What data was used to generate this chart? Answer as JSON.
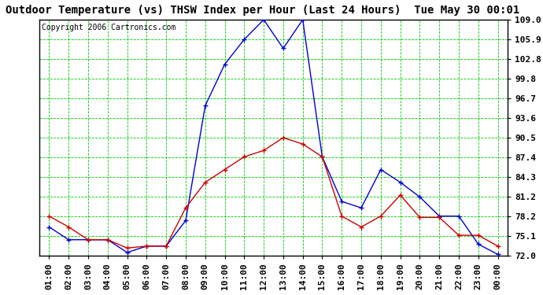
{
  "title": "Outdoor Temperature (vs) THSW Index per Hour (Last 24 Hours)  Tue May 30 00:01",
  "copyright": "Copyright 2006 Cartronics.com",
  "hours": [
    "01:00",
    "02:00",
    "03:00",
    "04:00",
    "05:00",
    "06:00",
    "07:00",
    "08:00",
    "09:00",
    "10:00",
    "11:00",
    "12:00",
    "13:00",
    "14:00",
    "15:00",
    "16:00",
    "17:00",
    "18:00",
    "19:00",
    "20:00",
    "21:00",
    "22:00",
    "23:00",
    "00:00"
  ],
  "temp": [
    78.2,
    76.5,
    74.5,
    74.5,
    73.2,
    73.5,
    73.5,
    79.5,
    83.5,
    85.5,
    87.5,
    88.5,
    90.5,
    89.5,
    87.5,
    78.2,
    76.5,
    78.2,
    81.5,
    78.0,
    78.0,
    75.2,
    75.2,
    73.5
  ],
  "thsw": [
    76.5,
    74.5,
    74.5,
    74.5,
    72.5,
    73.5,
    73.5,
    77.5,
    95.5,
    102.0,
    105.9,
    109.0,
    104.5,
    109.0,
    87.5,
    80.5,
    79.5,
    85.5,
    83.5,
    81.2,
    78.2,
    78.2,
    73.8,
    72.2
  ],
  "temp_color": "#cc0000",
  "thsw_color": "#0000cc",
  "bg_color": "#ffffff",
  "grid_color": "#00cc00",
  "ylim": [
    72.0,
    109.0
  ],
  "yticks": [
    72.0,
    75.1,
    78.2,
    81.2,
    84.3,
    87.4,
    90.5,
    93.6,
    96.7,
    99.8,
    102.8,
    105.9,
    109.0
  ],
  "title_fontsize": 10,
  "copyright_fontsize": 7,
  "tick_fontsize": 8,
  "title_color": "#000000",
  "outer_bg": "#ffffff"
}
